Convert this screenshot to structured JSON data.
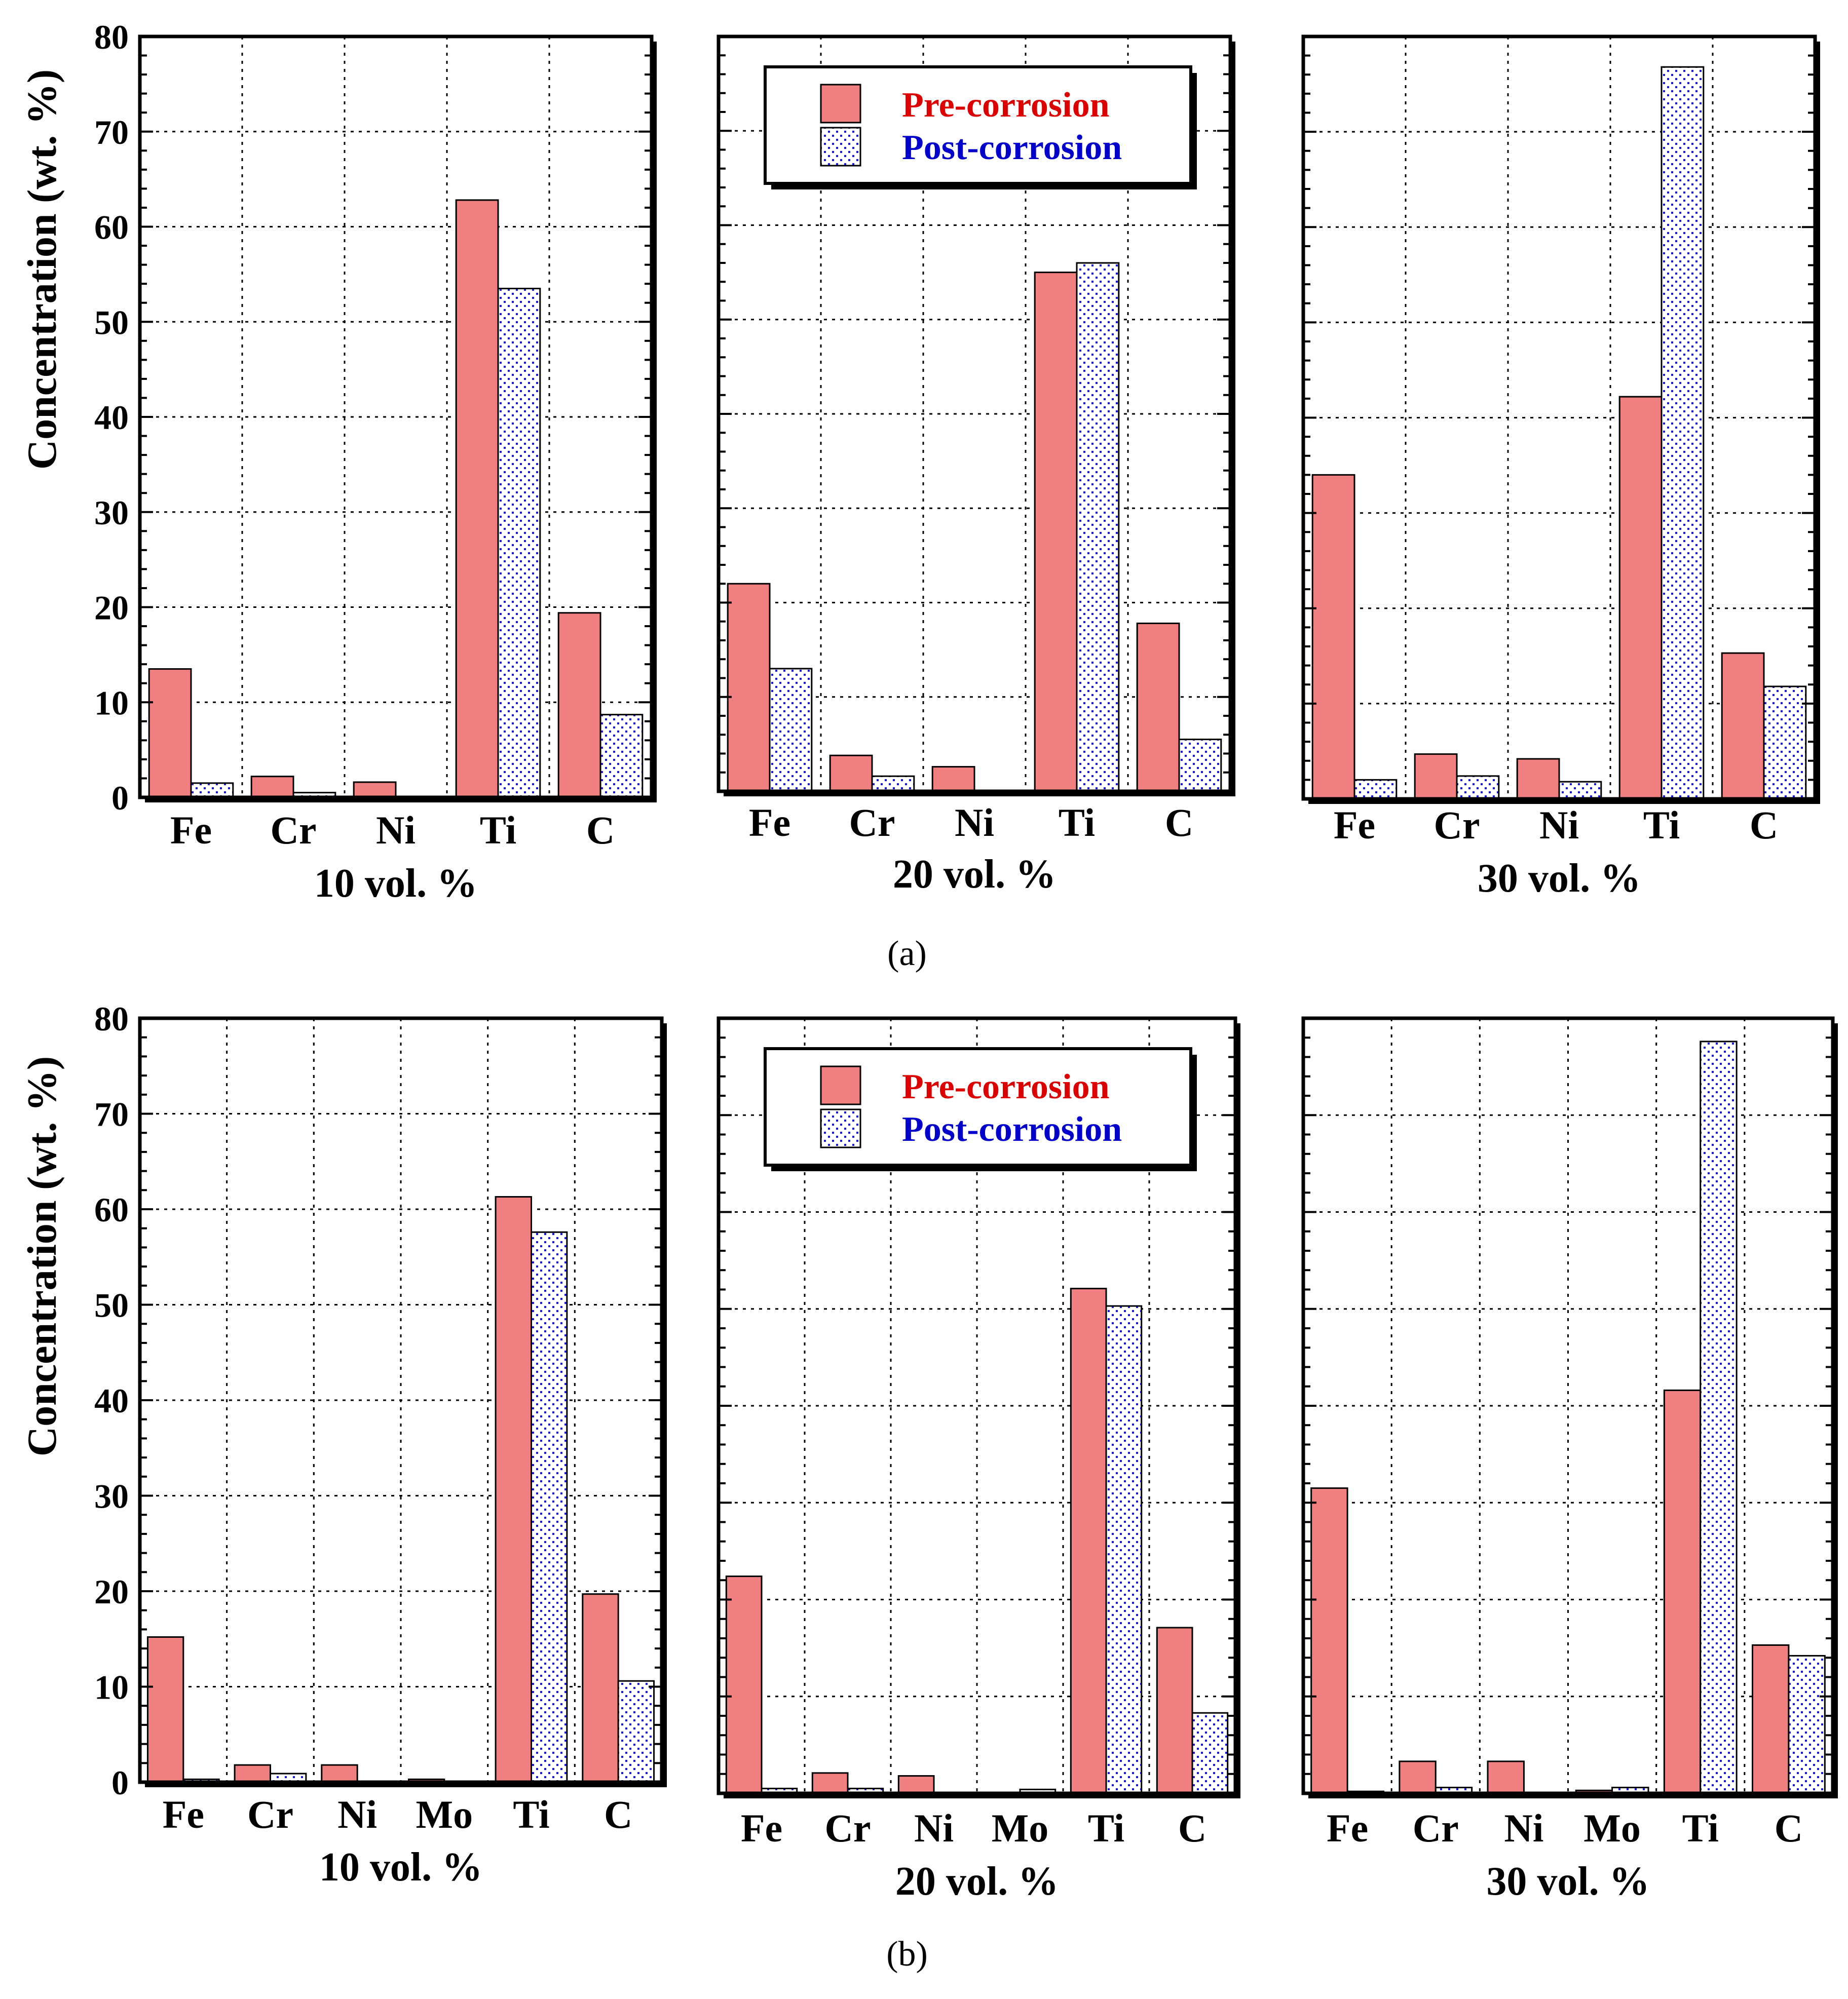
{
  "colors": {
    "pre": "#f08080",
    "post_fill": "#ffffff",
    "post_dot": "#1a1acc",
    "pre_text": "#dd0000",
    "post_text": "#0000cc",
    "axis": "#000000",
    "grid": "#000000"
  },
  "legend": {
    "pre_label": "Pre-corrosion",
    "post_label": "Post-corrosion"
  },
  "captions": {
    "a": "(a)",
    "b": "(b)"
  },
  "ylabel": "Concentration (wt. %)",
  "chart_data": [
    {
      "type": "bar",
      "row": "a",
      "title": "10 vol. %",
      "categories": [
        "Fe",
        "Cr",
        "Ni",
        "Ti",
        "C"
      ],
      "series": [
        {
          "name": "Pre-corrosion",
          "values": [
            13.5,
            2.2,
            1.6,
            62.8,
            19.4
          ]
        },
        {
          "name": "Post-corrosion",
          "values": [
            1.5,
            0.5,
            0.0,
            53.5,
            8.7
          ]
        }
      ],
      "ylim": [
        0,
        80
      ],
      "yticks": [
        0,
        10,
        20,
        30,
        40,
        50,
        60,
        70,
        80
      ],
      "show_tick_labels": true,
      "legend": false,
      "grid": true
    },
    {
      "type": "bar",
      "row": "a",
      "title": "20 vol. %",
      "categories": [
        "Fe",
        "Cr",
        "Ni",
        "Ti",
        "C"
      ],
      "series": [
        {
          "name": "Pre-corrosion",
          "values": [
            22.0,
            3.8,
            2.6,
            55.0,
            17.8
          ]
        },
        {
          "name": "Post-corrosion",
          "values": [
            13.0,
            1.6,
            0.0,
            56.0,
            5.5
          ]
        }
      ],
      "ylim": [
        0,
        80
      ],
      "yticks": [
        0,
        10,
        20,
        30,
        40,
        50,
        60,
        70,
        80
      ],
      "show_tick_labels": false,
      "legend": true,
      "grid": true
    },
    {
      "type": "bar",
      "row": "a",
      "title": "30 vol. %",
      "categories": [
        "Fe",
        "Cr",
        "Ni",
        "Ti",
        "C"
      ],
      "series": [
        {
          "name": "Pre-corrosion",
          "values": [
            34.0,
            4.7,
            4.2,
            42.2,
            15.3
          ]
        },
        {
          "name": "Post-corrosion",
          "values": [
            2.0,
            2.4,
            1.8,
            76.8,
            11.8
          ]
        }
      ],
      "ylim": [
        0,
        80
      ],
      "yticks": [
        0,
        10,
        20,
        30,
        40,
        50,
        60,
        70,
        80
      ],
      "show_tick_labels": false,
      "legend": false,
      "grid": true
    },
    {
      "type": "bar",
      "row": "b",
      "title": "10 vol. %",
      "categories": [
        "Fe",
        "Cr",
        "Ni",
        "Mo",
        "Ti",
        "C"
      ],
      "series": [
        {
          "name": "Pre-corrosion",
          "values": [
            15.2,
            1.8,
            1.8,
            0.3,
            61.3,
            19.7
          ]
        },
        {
          "name": "Post-corrosion",
          "values": [
            0.3,
            0.9,
            0.0,
            0.0,
            57.6,
            10.6
          ]
        }
      ],
      "ylim": [
        0,
        80
      ],
      "yticks": [
        0,
        10,
        20,
        30,
        40,
        50,
        60,
        70,
        80
      ],
      "show_tick_labels": true,
      "legend": false,
      "grid": true
    },
    {
      "type": "bar",
      "row": "b",
      "title": "20 vol. %",
      "categories": [
        "Fe",
        "Cr",
        "Ni",
        "Mo",
        "Ti",
        "C"
      ],
      "series": [
        {
          "name": "Pre-corrosion",
          "values": [
            22.4,
            2.1,
            1.8,
            0.0,
            52.1,
            17.1
          ]
        },
        {
          "name": "Post-corrosion",
          "values": [
            0.5,
            0.5,
            0.0,
            0.4,
            50.3,
            8.3
          ]
        }
      ],
      "ylim": [
        0,
        80
      ],
      "yticks": [
        0,
        10,
        20,
        30,
        40,
        50,
        60,
        70,
        80
      ],
      "show_tick_labels": false,
      "legend": true,
      "grid": true
    },
    {
      "type": "bar",
      "row": "b",
      "title": "30 vol. %",
      "categories": [
        "Fe",
        "Cr",
        "Ni",
        "Mo",
        "Ti",
        "C"
      ],
      "series": [
        {
          "name": "Pre-corrosion",
          "values": [
            31.5,
            3.3,
            3.3,
            0.3,
            41.6,
            15.3
          ]
        },
        {
          "name": "Post-corrosion",
          "values": [
            0.2,
            0.6,
            0.0,
            0.6,
            77.6,
            14.2
          ]
        }
      ],
      "ylim": [
        0,
        80
      ],
      "yticks": [
        0,
        10,
        20,
        30,
        40,
        50,
        60,
        70,
        80
      ],
      "show_tick_labels": false,
      "legend": false,
      "grid": true
    }
  ]
}
